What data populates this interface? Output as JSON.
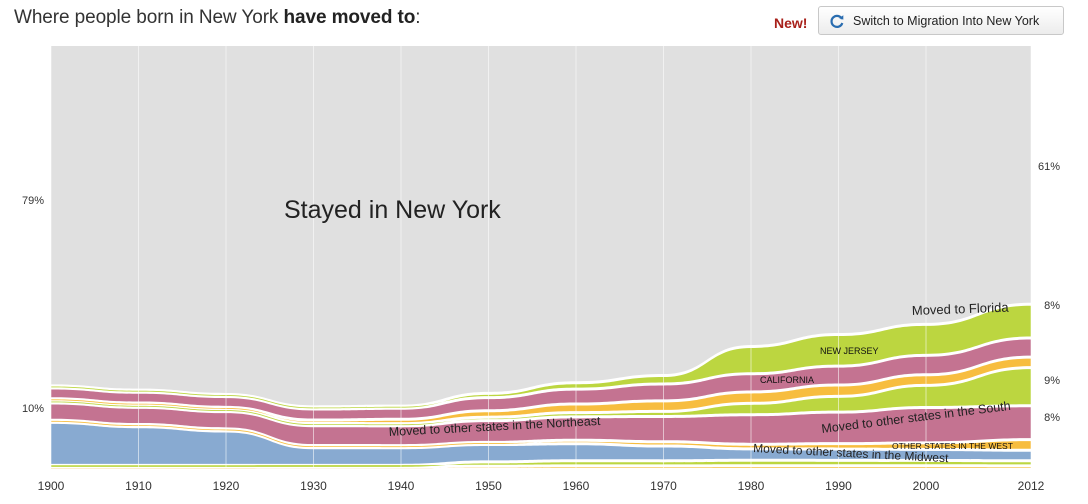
{
  "header": {
    "title_pre": "Where people born in New York ",
    "title_bold": "have moved to",
    "title_post": ":",
    "new_label": "New!",
    "switch_label": "Switch to Migration Into New York",
    "switch_icon": "refresh-icon"
  },
  "chart_data": {
    "type": "area",
    "x": [
      1900,
      1910,
      1920,
      1930,
      1940,
      1950,
      1960,
      1970,
      1980,
      1990,
      2000,
      2012
    ],
    "xticks": [
      "1900",
      "1910",
      "1920",
      "1930",
      "1940",
      "1950",
      "1960",
      "1970",
      "1980",
      "1990",
      "2000",
      "2012"
    ],
    "ylim": [
      0,
      100
    ],
    "grid": true,
    "series": [
      {
        "name": "Stayed in New York",
        "color": "#e0e0e0",
        "values": [
          79,
          80,
          81,
          82,
          82,
          80,
          79,
          78,
          66,
          64,
          63,
          61
        ]
      },
      {
        "name": "Moved to Florida",
        "color": "#bcd640",
        "values": [
          0.5,
          0.5,
          0.5,
          0.5,
          0.5,
          1,
          1.5,
          2,
          6,
          7,
          7,
          8
        ]
      },
      {
        "name": "New Jersey",
        "color": "#c47391",
        "values": [
          2.5,
          2.5,
          2.5,
          2.5,
          2.5,
          3,
          3.5,
          4,
          4,
          4.2,
          4.4,
          4.5
        ]
      },
      {
        "name": "California",
        "color": "#f7bd3f",
        "values": [
          0.5,
          0.5,
          0.5,
          0.8,
          1,
          1.5,
          2,
          2.5,
          2.5,
          2.5,
          2.4,
          2.5
        ]
      },
      {
        "name": "Moved to other states in the South",
        "color": "#bcd640",
        "values": [
          0.5,
          0.5,
          0.5,
          0.5,
          0.5,
          0.8,
          1,
          1.2,
          2.5,
          3.5,
          5,
          9
        ]
      },
      {
        "name": "Moved to other states in the Northeast",
        "color": "#c47391",
        "values": [
          4,
          4,
          4,
          4.5,
          4.5,
          5,
          5.5,
          6,
          6.5,
          7,
          8,
          8
        ]
      },
      {
        "name": "Moved to other states in the West",
        "color": "#f7bd3f",
        "values": [
          0.5,
          0.5,
          0.5,
          0.5,
          0.5,
          0.5,
          0.8,
          1,
          1,
          1.2,
          1.5,
          2.5
        ]
      },
      {
        "name": "Moved to other states in the Midwest",
        "color": "#88aad1",
        "values": [
          10,
          9,
          8,
          4,
          4,
          4,
          4,
          3.5,
          2.5,
          2.5,
          2.5,
          2.5
        ]
      },
      {
        "name": "",
        "color": "#bcd640",
        "values": [
          0.3,
          0.3,
          0.3,
          0.3,
          0.3,
          1,
          1.2,
          1.2,
          1.2,
          1.2,
          1.2,
          1.2
        ]
      },
      {
        "name": "",
        "color": "#f7bd3f",
        "values": [
          0.3,
          0.3,
          0.3,
          0.3,
          0.3,
          0.4,
          0.5,
          0.5,
          0.5,
          0.5,
          0.5,
          0.5
        ]
      }
    ],
    "labels": {
      "stayed": "Stayed in New York",
      "florida": "Moved to Florida",
      "new_jersey": "NEW JERSEY",
      "california": "CALIFORNIA",
      "south": "Moved to other states in the South",
      "northeast": "Moved to other states in the Northeast",
      "west": "OTHER STATES IN THE WEST",
      "midwest": "Moved to other states in the Midwest"
    },
    "annotations": {
      "start_stayed": "79%",
      "start_midwest": "10%",
      "end_stayed": "61%",
      "end_florida": "8%",
      "end_south": "9%",
      "end_northeast": "8%"
    }
  }
}
